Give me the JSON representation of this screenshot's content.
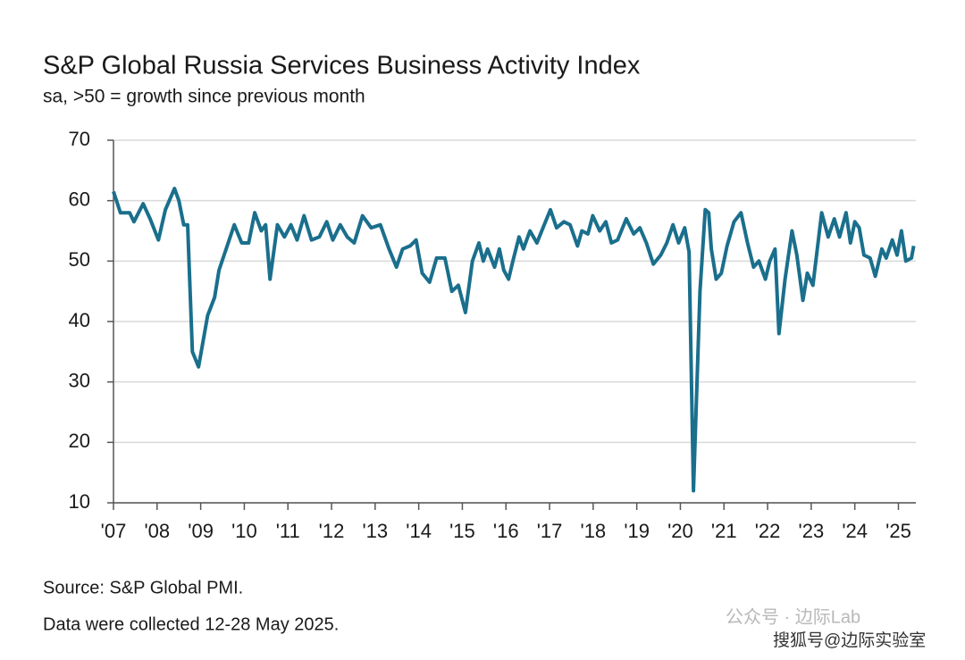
{
  "chart_data": {
    "type": "line",
    "title": "S&P Global Russia Services Business Activity Index",
    "subtitle": "sa, >50 = growth since previous month",
    "source": "Source: S&P Global PMI.",
    "note": "Data were collected 12-28 May 2025.",
    "watermark": "公众号 · 边际Lab",
    "watermark2": "搜狐号@边际实验室",
    "x": [
      2007.0,
      2007.16,
      2007.37,
      2007.47,
      2007.68,
      2007.84,
      2008.03,
      2008.19,
      2008.4,
      2008.5,
      2008.61,
      2008.7,
      2008.81,
      2008.95,
      2009.16,
      2009.32,
      2009.42,
      2009.63,
      2009.77,
      2009.94,
      2010.1,
      2010.24,
      2010.39,
      2010.49,
      2010.59,
      2010.76,
      2010.92,
      2011.07,
      2011.21,
      2011.37,
      2011.54,
      2011.72,
      2011.89,
      2012.03,
      2012.2,
      2012.36,
      2012.52,
      2012.71,
      2012.91,
      2013.12,
      2013.32,
      2013.49,
      2013.63,
      2013.8,
      2013.94,
      2014.08,
      2014.25,
      2014.41,
      2014.6,
      2014.76,
      2014.91,
      2015.07,
      2015.23,
      2015.38,
      2015.48,
      2015.58,
      2015.74,
      2015.85,
      2015.95,
      2016.06,
      2016.16,
      2016.3,
      2016.4,
      2016.55,
      2016.71,
      2016.85,
      2017.02,
      2017.16,
      2017.33,
      2017.47,
      2017.64,
      2017.74,
      2017.88,
      2017.99,
      2018.15,
      2018.29,
      2018.42,
      2018.56,
      2018.76,
      2018.93,
      2019.07,
      2019.22,
      2019.38,
      2019.55,
      2019.69,
      2019.83,
      2019.96,
      2020.1,
      2020.2,
      2020.3,
      2020.45,
      2020.57,
      2020.65,
      2020.71,
      2020.82,
      2020.94,
      2021.07,
      2021.23,
      2021.39,
      2021.54,
      2021.68,
      2021.8,
      2021.95,
      2022.05,
      2022.17,
      2022.26,
      2022.4,
      2022.56,
      2022.67,
      2022.81,
      2022.91,
      2023.04,
      2023.24,
      2023.39,
      2023.53,
      2023.65,
      2023.8,
      2023.9,
      2024.0,
      2024.1,
      2024.21,
      2024.35,
      2024.47,
      2024.62,
      2024.72,
      2024.86,
      2024.97,
      2025.07,
      2025.17,
      2025.3,
      2025.35
    ],
    "series": [
      {
        "name": "Services Business Activity Index",
        "color": "#1a6f8c",
        "values": [
          61.5,
          58,
          58,
          56.5,
          59.5,
          57,
          53.5,
          58.5,
          62,
          60,
          56,
          56,
          35,
          32.5,
          41,
          44,
          48.5,
          53,
          56,
          53,
          53,
          58,
          55,
          56,
          47,
          56,
          54,
          56,
          53.5,
          57.5,
          53.5,
          54,
          56.5,
          53.5,
          56,
          54,
          53,
          57.5,
          55.5,
          56,
          52,
          49,
          52,
          52.5,
          53.5,
          48,
          46.5,
          50.5,
          50.5,
          45,
          46,
          41.5,
          50,
          53,
          50,
          52,
          49,
          52,
          48.5,
          47,
          50,
          54,
          52,
          55,
          53,
          55.5,
          58.5,
          55.5,
          56.5,
          56,
          52.5,
          55,
          54.5,
          57.5,
          55,
          56.5,
          53,
          53.5,
          57,
          54.5,
          55.5,
          53,
          49.5,
          51,
          53,
          56,
          53,
          55.5,
          51.5,
          12,
          45,
          58.5,
          58,
          52,
          47,
          48,
          52.5,
          56.5,
          58,
          53,
          49,
          50,
          47,
          50,
          52,
          38,
          47,
          55,
          51,
          43.5,
          48,
          46,
          58,
          54,
          57,
          54,
          58,
          53,
          56.5,
          55.5,
          51,
          50.5,
          47.5,
          52,
          50.5,
          53.5,
          51,
          55,
          50,
          50.5,
          52.5
        ]
      }
    ],
    "xlim": [
      2007,
      2025.4
    ],
    "xticks": [
      {
        "value": 2007,
        "label": "'07"
      },
      {
        "value": 2008,
        "label": "'08"
      },
      {
        "value": 2009,
        "label": "'09"
      },
      {
        "value": 2010,
        "label": "'10"
      },
      {
        "value": 2011,
        "label": "'11"
      },
      {
        "value": 2012,
        "label": "'12"
      },
      {
        "value": 2013,
        "label": "'13"
      },
      {
        "value": 2014,
        "label": "'14"
      },
      {
        "value": 2015,
        "label": "'15"
      },
      {
        "value": 2016,
        "label": "'16"
      },
      {
        "value": 2017,
        "label": "'17"
      },
      {
        "value": 2018,
        "label": "'18"
      },
      {
        "value": 2019,
        "label": "'19"
      },
      {
        "value": 2020,
        "label": "'20"
      },
      {
        "value": 2021,
        "label": "'21"
      },
      {
        "value": 2022,
        "label": "'22"
      },
      {
        "value": 2023,
        "label": "'23"
      },
      {
        "value": 2024,
        "label": "'24"
      },
      {
        "value": 2025,
        "label": "'25"
      }
    ],
    "ylim": [
      10,
      70
    ],
    "yticks": [
      10,
      20,
      30,
      40,
      50,
      60,
      70
    ],
    "grid": true
  }
}
